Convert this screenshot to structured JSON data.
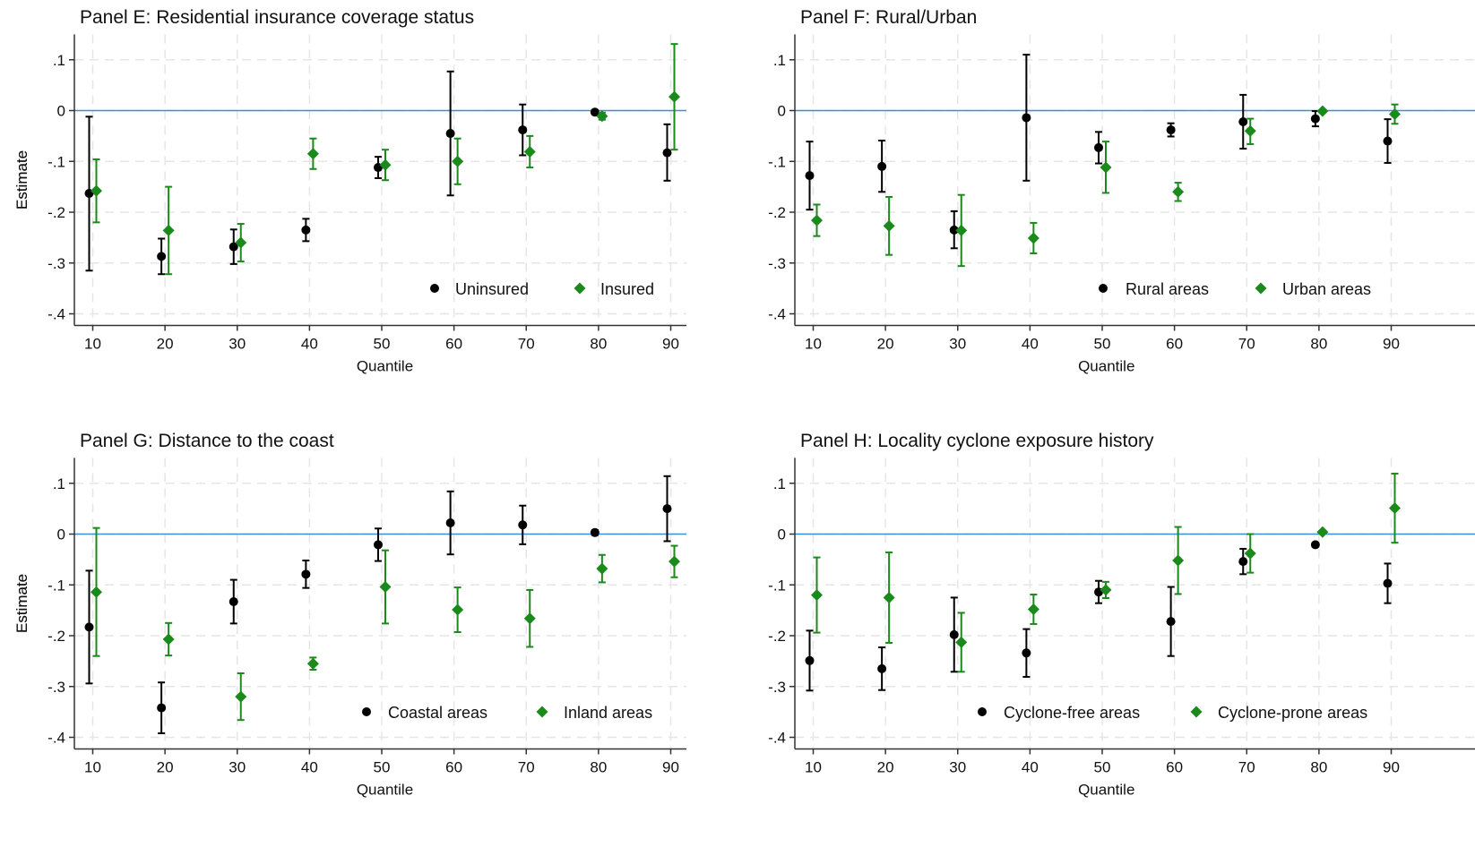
{
  "chart_data": [
    {
      "type": "scatter",
      "title": "Panel E: Residential insurance coverage status",
      "xlabel": "Quantile",
      "ylabel": "Estimate",
      "x": [
        10,
        20,
        30,
        40,
        50,
        60,
        70,
        80,
        90
      ],
      "xticks": [
        "10",
        "20",
        "30",
        "40",
        "50",
        "60",
        "70",
        "80",
        "90"
      ],
      "ylim": [
        -0.4,
        0.15
      ],
      "yticks": [
        ".1",
        "0",
        "-.1",
        "-.2",
        "-.3",
        "-.4"
      ],
      "ytick_values": [
        0.1,
        0,
        -0.1,
        -0.2,
        -0.3,
        -0.4
      ],
      "reference_line": 0,
      "grid": true,
      "legend_position": "bottom-right",
      "series": [
        {
          "name": "Uninsured",
          "marker": "circle",
          "color": "#000000",
          "values": [
            -0.163,
            -0.287,
            -0.268,
            -0.235,
            -0.112,
            -0.045,
            -0.038,
            -0.003,
            -0.083
          ],
          "ci_low": [
            -0.315,
            -0.322,
            -0.302,
            -0.257,
            -0.133,
            -0.167,
            -0.088,
            -0.006,
            -0.138
          ],
          "ci_high": [
            -0.012,
            -0.252,
            -0.234,
            -0.213,
            -0.091,
            0.077,
            0.012,
            0.0,
            -0.027
          ]
        },
        {
          "name": "Insured",
          "marker": "diamond",
          "color": "#1a8a1a",
          "values": [
            -0.158,
            -0.236,
            -0.26,
            -0.085,
            -0.107,
            -0.1,
            -0.081,
            -0.011,
            0.027
          ],
          "ci_low": [
            -0.22,
            -0.322,
            -0.297,
            -0.115,
            -0.137,
            -0.145,
            -0.112,
            -0.018,
            -0.077
          ],
          "ci_high": [
            -0.096,
            -0.15,
            -0.223,
            -0.055,
            -0.077,
            -0.055,
            -0.05,
            -0.004,
            0.131
          ]
        }
      ]
    },
    {
      "type": "scatter",
      "title": "Panel F: Rural/Urban",
      "xlabel": "Quantile",
      "ylabel": "Estimate",
      "x": [
        10,
        20,
        30,
        40,
        50,
        60,
        70,
        80,
        90
      ],
      "xticks": [
        "10",
        "20",
        "30",
        "40",
        "50",
        "60",
        "70",
        "80",
        "90"
      ],
      "ylim": [
        -0.4,
        0.15
      ],
      "yticks": [
        ".1",
        "0",
        "-.1",
        "-.2",
        "-.3",
        "-.4"
      ],
      "ytick_values": [
        0.1,
        0,
        -0.1,
        -0.2,
        -0.3,
        -0.4
      ],
      "reference_line": 0,
      "grid": true,
      "legend_position": "bottom-right",
      "series": [
        {
          "name": "Rural areas",
          "marker": "circle",
          "color": "#000000",
          "values": [
            -0.128,
            -0.11,
            -0.235,
            -0.014,
            -0.073,
            -0.038,
            -0.022,
            -0.016,
            -0.06
          ],
          "ci_low": [
            -0.195,
            -0.16,
            -0.271,
            -0.138,
            -0.104,
            -0.051,
            -0.075,
            -0.031,
            -0.103
          ],
          "ci_high": [
            -0.061,
            -0.059,
            -0.198,
            0.11,
            -0.042,
            -0.025,
            0.031,
            -0.001,
            -0.017
          ]
        },
        {
          "name": "Urban areas",
          "marker": "diamond",
          "color": "#1a8a1a",
          "values": [
            -0.216,
            -0.227,
            -0.236,
            -0.251,
            -0.112,
            -0.16,
            -0.04,
            -0.001,
            -0.007
          ],
          "ci_low": [
            -0.247,
            -0.284,
            -0.306,
            -0.281,
            -0.162,
            -0.178,
            -0.066,
            -0.004,
            -0.026
          ],
          "ci_high": [
            -0.185,
            -0.17,
            -0.166,
            -0.221,
            -0.061,
            -0.142,
            -0.016,
            0.002,
            0.012
          ]
        }
      ]
    },
    {
      "type": "scatter",
      "title": "Panel G: Distance to the coast",
      "xlabel": "Quantile",
      "ylabel": "Estimate",
      "x": [
        10,
        20,
        30,
        40,
        50,
        60,
        70,
        80,
        90
      ],
      "xticks": [
        "10",
        "20",
        "30",
        "40",
        "50",
        "60",
        "70",
        "80",
        "90"
      ],
      "ylim": [
        -0.4,
        0.15
      ],
      "yticks": [
        ".1",
        "0",
        "-.1",
        "-.2",
        "-.3",
        "-.4"
      ],
      "ytick_values": [
        0.1,
        0,
        -0.1,
        -0.2,
        -0.3,
        -0.4
      ],
      "reference_line": 0,
      "grid": true,
      "legend_position": "bottom-right",
      "series": [
        {
          "name": "Coastal areas",
          "marker": "circle",
          "color": "#000000",
          "values": [
            -0.183,
            -0.342,
            -0.133,
            -0.079,
            -0.021,
            0.022,
            0.018,
            0.003,
            0.05
          ],
          "ci_low": [
            -0.294,
            -0.392,
            -0.176,
            -0.106,
            -0.053,
            -0.04,
            -0.02,
            -0.002,
            -0.014
          ],
          "ci_high": [
            -0.072,
            -0.292,
            -0.09,
            -0.052,
            0.011,
            0.084,
            0.056,
            0.008,
            0.114
          ]
        },
        {
          "name": "Inland areas",
          "marker": "diamond",
          "color": "#1a8a1a",
          "values": [
            -0.114,
            -0.207,
            -0.32,
            -0.255,
            -0.104,
            -0.149,
            -0.166,
            -0.068,
            -0.054
          ],
          "ci_low": [
            -0.24,
            -0.239,
            -0.366,
            -0.267,
            -0.176,
            -0.193,
            -0.222,
            -0.095,
            -0.085
          ],
          "ci_high": [
            0.012,
            -0.175,
            -0.274,
            -0.243,
            -0.032,
            -0.105,
            -0.11,
            -0.041,
            -0.023
          ]
        }
      ]
    },
    {
      "type": "scatter",
      "title": "Panel H: Locality cyclone exposure history",
      "xlabel": "Quantile",
      "ylabel": "Estimate",
      "x": [
        10,
        20,
        30,
        40,
        50,
        60,
        70,
        80,
        90
      ],
      "xticks": [
        "10",
        "20",
        "30",
        "40",
        "50",
        "60",
        "70",
        "80",
        "90"
      ],
      "ylim": [
        -0.4,
        0.15
      ],
      "yticks": [
        ".1",
        "0",
        "-.1",
        "-.2",
        "-.3",
        "-.4"
      ],
      "ytick_values": [
        0.1,
        0,
        -0.1,
        -0.2,
        -0.3,
        -0.4
      ],
      "reference_line": 0,
      "grid": true,
      "legend_position": "bottom-right",
      "series": [
        {
          "name": "Cyclone-free areas",
          "marker": "circle",
          "color": "#000000",
          "values": [
            -0.249,
            -0.265,
            -0.198,
            -0.234,
            -0.114,
            -0.172,
            -0.054,
            -0.021,
            -0.097
          ],
          "ci_low": [
            -0.308,
            -0.307,
            -0.271,
            -0.281,
            -0.136,
            -0.24,
            -0.079,
            -0.024,
            -0.136
          ],
          "ci_high": [
            -0.19,
            -0.223,
            -0.125,
            -0.187,
            -0.092,
            -0.104,
            -0.029,
            -0.018,
            -0.058
          ]
        },
        {
          "name": "Cyclone-prone areas",
          "marker": "diamond",
          "color": "#1a8a1a",
          "values": [
            -0.12,
            -0.125,
            -0.213,
            -0.148,
            -0.11,
            -0.052,
            -0.038,
            0.004,
            0.051
          ],
          "ci_low": [
            -0.194,
            -0.214,
            -0.271,
            -0.177,
            -0.126,
            -0.118,
            -0.076,
            0.001,
            -0.017
          ],
          "ci_high": [
            -0.046,
            -0.036,
            -0.155,
            -0.119,
            -0.094,
            0.014,
            0.0,
            0.007,
            0.119
          ]
        }
      ]
    }
  ]
}
